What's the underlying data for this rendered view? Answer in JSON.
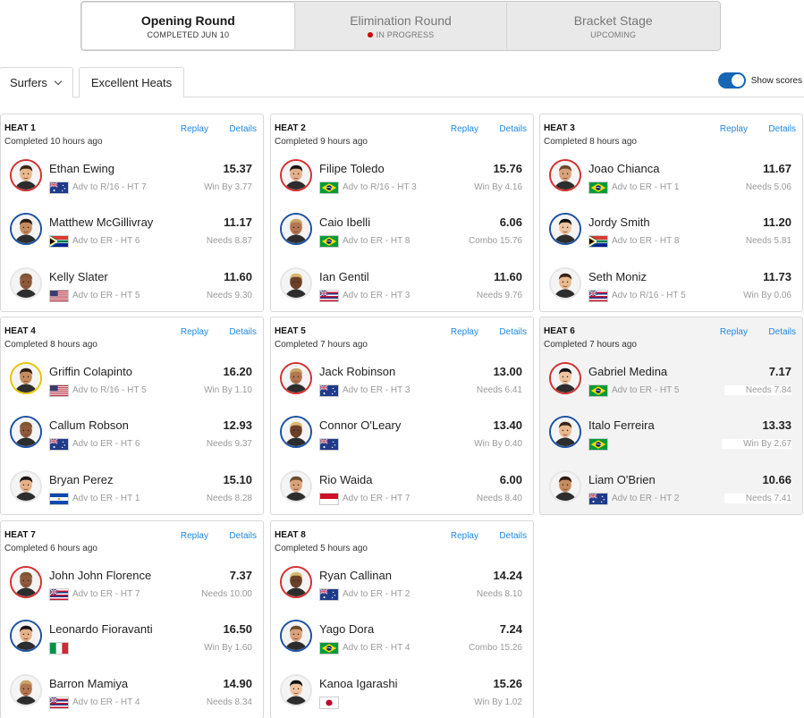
{
  "rounds": [
    {
      "name": "Opening Round",
      "status": "COMPLETED JUN 10",
      "active": true,
      "live": false
    },
    {
      "name": "Elimination Round",
      "status": "IN PROGRESS",
      "active": false,
      "live": true
    },
    {
      "name": "Bracket Stage",
      "status": "UPCOMING",
      "active": false,
      "live": false
    }
  ],
  "filters": {
    "surfers_label": "Surfers",
    "excellent_label": "Excellent Heats"
  },
  "toggle": {
    "label": "Show scores",
    "on": true
  },
  "heats": [
    {
      "title": "HEAT 1",
      "time": "Completed 10 hours ago",
      "replay": "Replay",
      "details": "Details",
      "highlight": false,
      "surfers": [
        {
          "name": "Ethan Ewing",
          "score": "15.37",
          "flag": "australia-flag",
          "adv": "Adv to R/16 - HT 7",
          "need": "Win By 3.77",
          "ring": "red"
        },
        {
          "name": "Matthew McGillivray",
          "score": "11.17",
          "flag": "south-africa-flag",
          "adv": "Adv to ER - HT 6",
          "need": "Needs 8.87",
          "ring": "blue"
        },
        {
          "name": "Kelly Slater",
          "score": "11.60",
          "flag": "usa-flag",
          "adv": "Adv to ER - HT 5",
          "need": "Needs 9.30",
          "ring": "white"
        }
      ]
    },
    {
      "title": "HEAT 2",
      "time": "Completed 9 hours ago",
      "replay": "Replay",
      "details": "Details",
      "highlight": false,
      "surfers": [
        {
          "name": "Filipe Toledo",
          "score": "15.76",
          "flag": "brazil-flag",
          "adv": "Adv to R/16 - HT 3",
          "need": "Win By 4.16",
          "ring": "red"
        },
        {
          "name": "Caio Ibelli",
          "score": "6.06",
          "flag": "brazil-flag",
          "adv": "Adv to ER - HT 8",
          "need": "Combo 15.76",
          "ring": "blue"
        },
        {
          "name": "Ian Gentil",
          "score": "11.60",
          "flag": "hawaii-flag",
          "adv": "Adv to ER - HT 3",
          "need": "Needs 9.76",
          "ring": "white"
        }
      ]
    },
    {
      "title": "HEAT 3",
      "time": "Completed 8 hours ago",
      "replay": "Replay",
      "details": "Details",
      "highlight": false,
      "surfers": [
        {
          "name": "Joao Chianca",
          "score": "11.67",
          "flag": "brazil-flag",
          "adv": "Adv to ER - HT 1",
          "need": "Needs 5.06",
          "ring": "red"
        },
        {
          "name": "Jordy Smith",
          "score": "11.20",
          "flag": "south-africa-flag",
          "adv": "Adv to ER - HT 8",
          "need": "Needs 5.81",
          "ring": "blue"
        },
        {
          "name": "Seth Moniz",
          "score": "11.73",
          "flag": "hawaii-flag",
          "adv": "Adv to R/16 - HT 5",
          "need": "Win By 0.06",
          "ring": "white"
        }
      ]
    },
    {
      "title": "HEAT 4",
      "time": "Completed 8 hours ago",
      "replay": "Replay",
      "details": "Details",
      "highlight": false,
      "surfers": [
        {
          "name": "Griffin Colapinto",
          "score": "16.20",
          "flag": "usa-flag",
          "adv": "Adv to R/16 - HT 5",
          "need": "Win By 1.10",
          "ring": "yellow"
        },
        {
          "name": "Callum Robson",
          "score": "12.93",
          "flag": "australia-flag",
          "adv": "Adv to ER - HT 6",
          "need": "Needs 9.37",
          "ring": "blue"
        },
        {
          "name": "Bryan Perez",
          "score": "15.10",
          "flag": "el-salvador-flag",
          "adv": "Adv to ER - HT 1",
          "need": "Needs 8.28",
          "ring": "white"
        }
      ]
    },
    {
      "title": "HEAT 5",
      "time": "Completed 7 hours ago",
      "replay": "Replay",
      "details": "Details",
      "highlight": false,
      "surfers": [
        {
          "name": "Jack Robinson",
          "score": "13.00",
          "flag": "australia-flag",
          "adv": "Adv to ER - HT 3",
          "need": "Needs 6.41",
          "ring": "red"
        },
        {
          "name": "Connor O'Leary",
          "score": "13.40",
          "flag": "australia-flag",
          "adv": "",
          "need": "Win By 0.40",
          "ring": "blue"
        },
        {
          "name": "Rio Waida",
          "score": "6.00",
          "flag": "indonesia-flag",
          "adv": "Adv to ER - HT 7",
          "need": "Needs 8.40",
          "ring": "white"
        }
      ]
    },
    {
      "title": "HEAT 6",
      "time": "Completed 7 hours ago",
      "replay": "Replay",
      "details": "Details",
      "highlight": true,
      "surfers": [
        {
          "name": "Gabriel Medina",
          "score": "7.17",
          "flag": "brazil-flag",
          "adv": "Adv to ER - HT 5",
          "need": "Needs 7.84",
          "ring": "red"
        },
        {
          "name": "Italo Ferreira",
          "score": "13.33",
          "flag": "brazil-flag",
          "adv": "",
          "need": "Win By 2.67",
          "ring": "blue"
        },
        {
          "name": "Liam O'Brien",
          "score": "10.66",
          "flag": "australia-flag",
          "adv": "Adv to ER - HT 2",
          "need": "Needs 7.41",
          "ring": "white"
        }
      ]
    },
    {
      "title": "HEAT 7",
      "time": "Completed 6 hours ago",
      "replay": "Replay",
      "details": "Details",
      "highlight": false,
      "surfers": [
        {
          "name": "John John Florence",
          "score": "7.37",
          "flag": "hawaii-flag",
          "adv": "Adv to ER - HT 7",
          "need": "Needs 10.00",
          "ring": "red"
        },
        {
          "name": "Leonardo Fioravanti",
          "score": "16.50",
          "flag": "italy-flag",
          "adv": "",
          "need": "Win By 1.60",
          "ring": "blue"
        },
        {
          "name": "Barron Mamiya",
          "score": "14.90",
          "flag": "hawaii-flag",
          "adv": "Adv to ER - HT 4",
          "need": "Needs 8.34",
          "ring": "white"
        }
      ]
    },
    {
      "title": "HEAT 8",
      "time": "Completed 5 hours ago",
      "replay": "Replay",
      "details": "Details",
      "highlight": false,
      "surfers": [
        {
          "name": "Ryan Callinan",
          "score": "14.24",
          "flag": "australia-flag",
          "adv": "Adv to ER - HT 2",
          "need": "Needs 8.10",
          "ring": "red"
        },
        {
          "name": "Yago Dora",
          "score": "7.24",
          "flag": "brazil-flag",
          "adv": "Adv to ER - HT 4",
          "need": "Combo 15.26",
          "ring": "blue"
        },
        {
          "name": "Kanoa Igarashi",
          "score": "15.26",
          "flag": "japan-flag",
          "adv": "",
          "need": "Win By 1.02",
          "ring": "white"
        }
      ]
    }
  ]
}
